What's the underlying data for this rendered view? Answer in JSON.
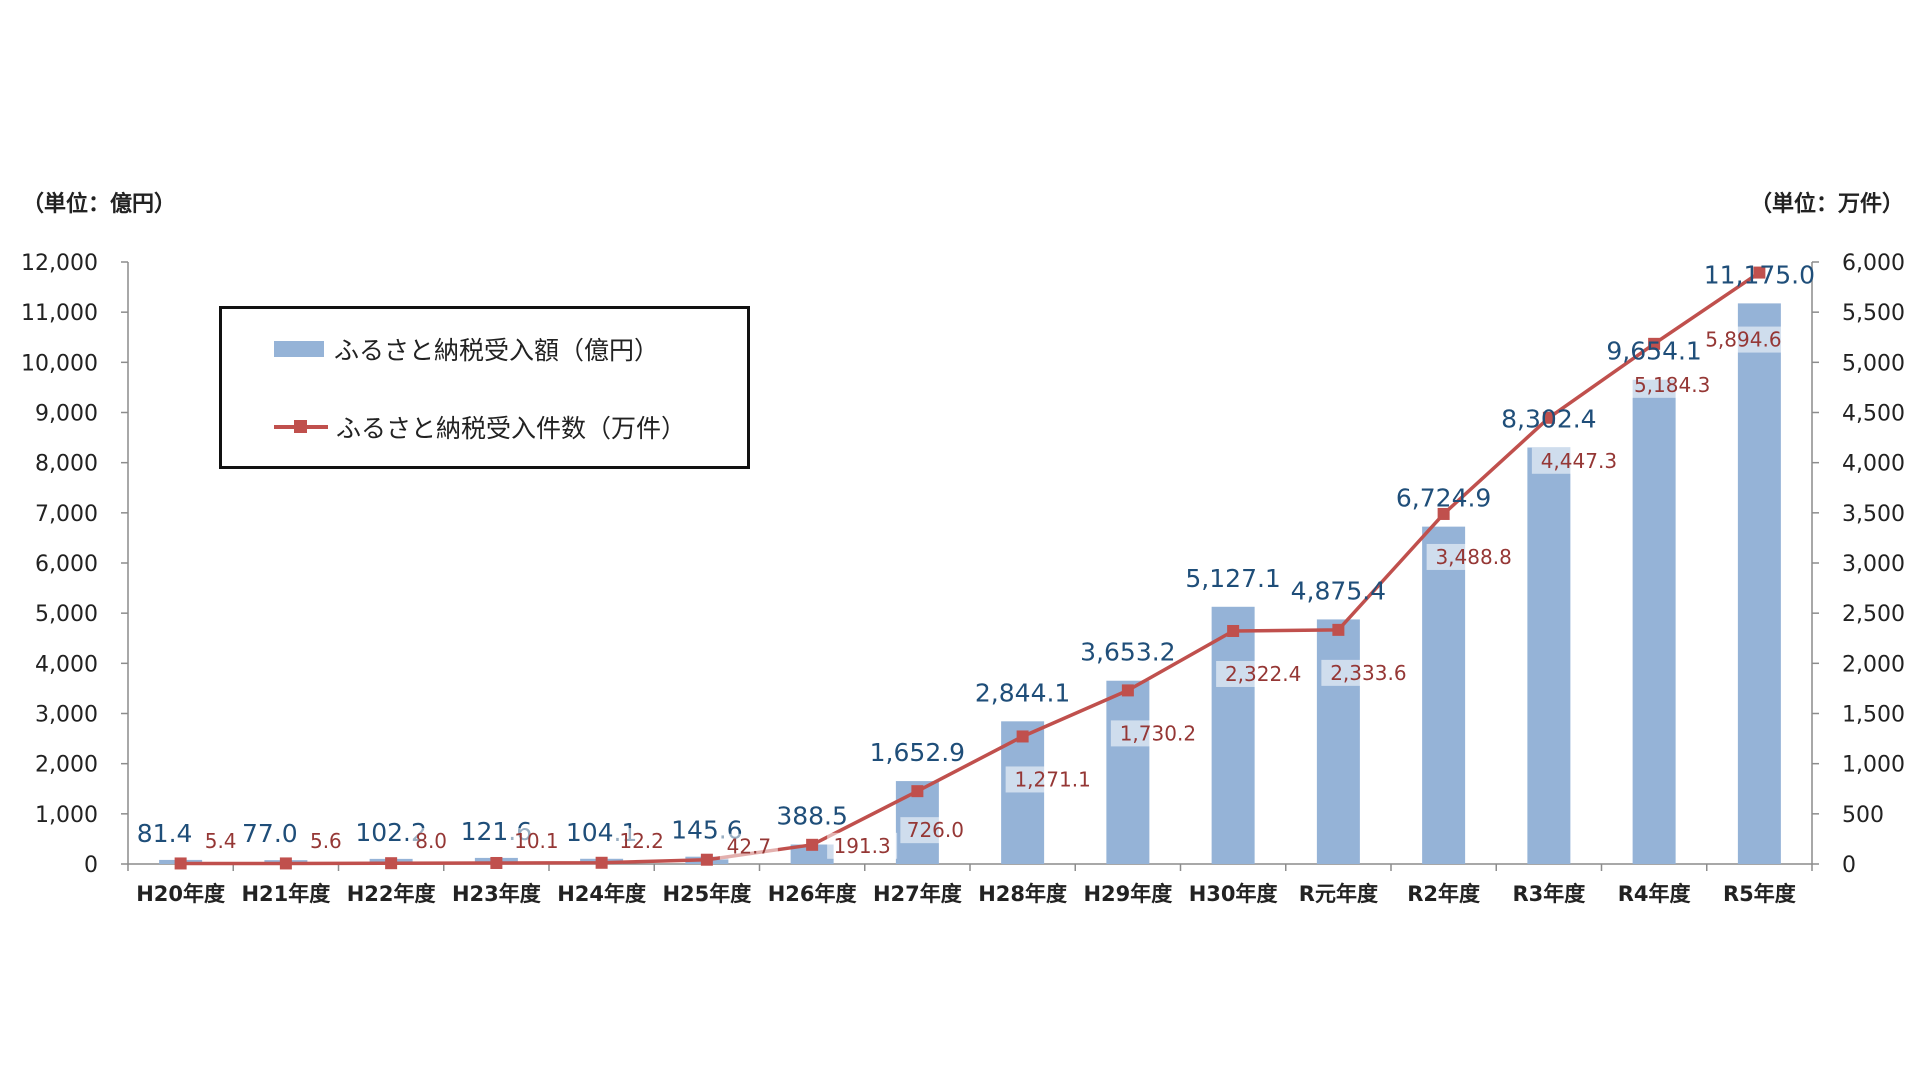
{
  "chart_data": {
    "type": "bar+line",
    "left_unit_label": "（単位：億円）",
    "right_unit_label": "（単位：万件）",
    "categories": [
      "H20年度",
      "H21年度",
      "H22年度",
      "H23年度",
      "H24年度",
      "H25年度",
      "H26年度",
      "H27年度",
      "H28年度",
      "H29年度",
      "H30年度",
      "R元年度",
      "R2年度",
      "R3年度",
      "R4年度",
      "R5年度"
    ],
    "series": [
      {
        "name": "ふるさと納税受入額（億円）",
        "type": "bar",
        "axis": "left",
        "values": [
          81.4,
          77.0,
          102.2,
          121.6,
          104.1,
          145.6,
          388.5,
          1652.9,
          2844.1,
          3653.2,
          5127.1,
          4875.4,
          6724.9,
          8302.4,
          9654.1,
          11175.0
        ],
        "labels": [
          "81.4",
          "77.0",
          "102.2",
          "121.6",
          "104.1",
          "145.6",
          "388.5",
          "1,652.9",
          "2,844.1",
          "3,653.2",
          "5,127.1",
          "4,875.4",
          "6,724.9",
          "8,302.4",
          "9,654.1",
          "11,175.0"
        ]
      },
      {
        "name": "ふるさと納税受入件数（万件）",
        "type": "line",
        "axis": "right",
        "values": [
          5.4,
          5.6,
          8.0,
          10.1,
          12.2,
          42.7,
          191.3,
          726.0,
          1271.1,
          1730.2,
          2322.4,
          2333.6,
          3488.8,
          4447.3,
          5184.3,
          5894.6
        ],
        "labels": [
          "5.4",
          "5.6",
          "8.0",
          "10.1",
          "12.2",
          "42.7",
          "191.3",
          "726.0",
          "1,271.1",
          "1,730.2",
          "2,322.4",
          "2,333.6",
          "3,488.8",
          "4,447.3",
          "5,184.3",
          "5,894.6"
        ]
      }
    ],
    "y_left": {
      "range": [
        0,
        12000
      ],
      "ticks": [
        "0",
        "1,000",
        "2,000",
        "3,000",
        "4,000",
        "5,000",
        "6,000",
        "7,000",
        "8,000",
        "9,000",
        "10,000",
        "11,000",
        "12,000"
      ]
    },
    "y_right": {
      "range": [
        0,
        6000
      ],
      "ticks": [
        "0",
        "500",
        "1,000",
        "1,500",
        "2,000",
        "2,500",
        "3,000",
        "3,500",
        "4,000",
        "4,500",
        "5,000",
        "5,500",
        "6,000"
      ]
    },
    "legend_position": "top-left",
    "grid": false,
    "colors": {
      "bar": "#95B3D7",
      "bar_label": "#1F4E79",
      "line": "#C0504D",
      "line_label": "#953735"
    }
  }
}
